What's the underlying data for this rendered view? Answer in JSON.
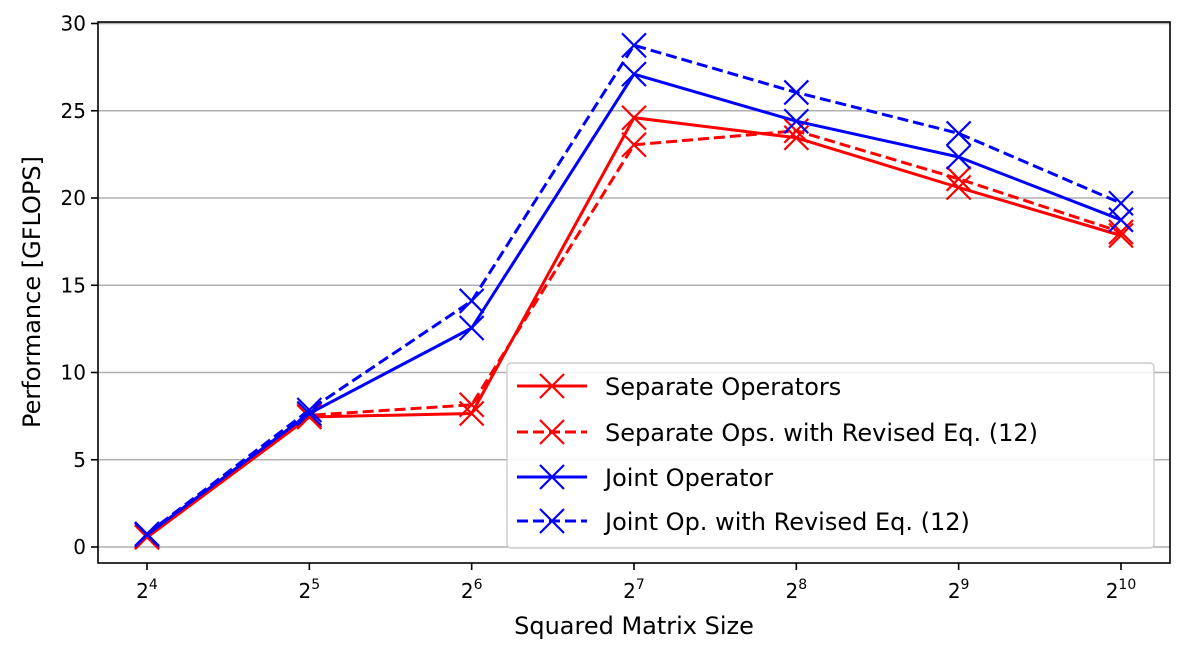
{
  "chart_data": {
    "type": "line",
    "title": "",
    "xlabel": "Squared Matrix Size",
    "ylabel": "Performance [GFLOPS]",
    "x": [
      "2^4",
      "2^5",
      "2^6",
      "2^7",
      "2^8",
      "2^9",
      "2^10"
    ],
    "x_tick_labels": [
      {
        "base": "2",
        "exp": "4"
      },
      {
        "base": "2",
        "exp": "5"
      },
      {
        "base": "2",
        "exp": "6"
      },
      {
        "base": "2",
        "exp": "7"
      },
      {
        "base": "2",
        "exp": "8"
      },
      {
        "base": "2",
        "exp": "9"
      },
      {
        "base": "2",
        "exp": "10"
      }
    ],
    "y_ticks": [
      0,
      5,
      10,
      15,
      20,
      25,
      30
    ],
    "ylim": [
      -0.9,
      30.1
    ],
    "grid": "y",
    "legend_position": "lower right",
    "series": [
      {
        "name": "Separate Operators",
        "color": "#ff0000",
        "linestyle": "solid",
        "marker": "x",
        "values": [
          0.55,
          7.45,
          7.65,
          24.6,
          23.45,
          20.6,
          17.85
        ]
      },
      {
        "name": "Separate Ops. with Revised Eq. (12)",
        "color": "#ff0000",
        "linestyle": "dashed",
        "marker": "x",
        "values": [
          0.6,
          7.55,
          8.15,
          23.05,
          23.85,
          21.1,
          18.05
        ]
      },
      {
        "name": "Joint Operator",
        "color": "#0000ff",
        "linestyle": "solid",
        "marker": "x",
        "values": [
          0.7,
          7.65,
          12.55,
          27.1,
          24.4,
          22.35,
          18.75
        ]
      },
      {
        "name": "Joint Op. with Revised Eq. (12)",
        "color": "#0000ff",
        "linestyle": "dashed",
        "marker": "x",
        "values": [
          0.75,
          7.85,
          14.1,
          28.75,
          26.05,
          23.7,
          19.7
        ]
      }
    ]
  }
}
